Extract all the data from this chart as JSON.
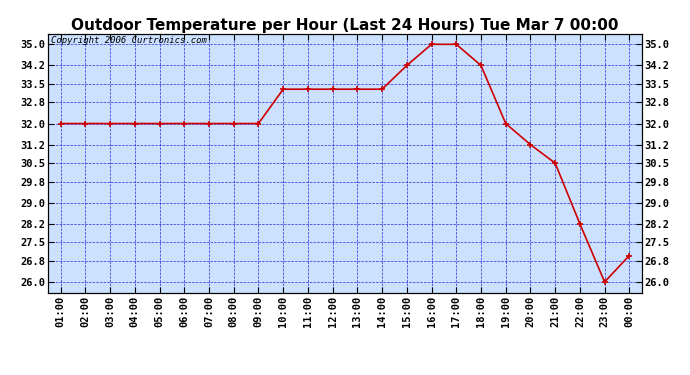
{
  "title": "Outdoor Temperature per Hour (Last 24 Hours) Tue Mar 7 00:00",
  "copyright": "Copyright 2006 Curtronics.com",
  "x_labels": [
    "01:00",
    "02:00",
    "03:00",
    "04:00",
    "05:00",
    "06:00",
    "07:00",
    "08:00",
    "09:00",
    "10:00",
    "11:00",
    "12:00",
    "13:00",
    "14:00",
    "15:00",
    "16:00",
    "17:00",
    "18:00",
    "19:00",
    "20:00",
    "21:00",
    "22:00",
    "23:00",
    "00:00"
  ],
  "y_values": [
    32.0,
    32.0,
    32.0,
    32.0,
    32.0,
    32.0,
    32.0,
    32.0,
    32.0,
    33.3,
    33.3,
    33.3,
    33.3,
    33.3,
    34.2,
    35.0,
    35.0,
    34.2,
    32.0,
    31.2,
    30.5,
    28.2,
    26.0,
    27.0
  ],
  "ylim": [
    25.6,
    35.4
  ],
  "yticks": [
    26.0,
    26.8,
    27.5,
    28.2,
    29.0,
    29.8,
    30.5,
    31.2,
    32.0,
    32.8,
    33.5,
    34.2,
    35.0
  ],
  "line_color": "#cc0000",
  "marker_color": "#cc0000",
  "bg_color": "#cce0ff",
  "grid_color": "#0000cc",
  "border_color": "#000000",
  "title_fontsize": 11,
  "tick_fontsize": 7.5,
  "copyright_fontsize": 6.5
}
